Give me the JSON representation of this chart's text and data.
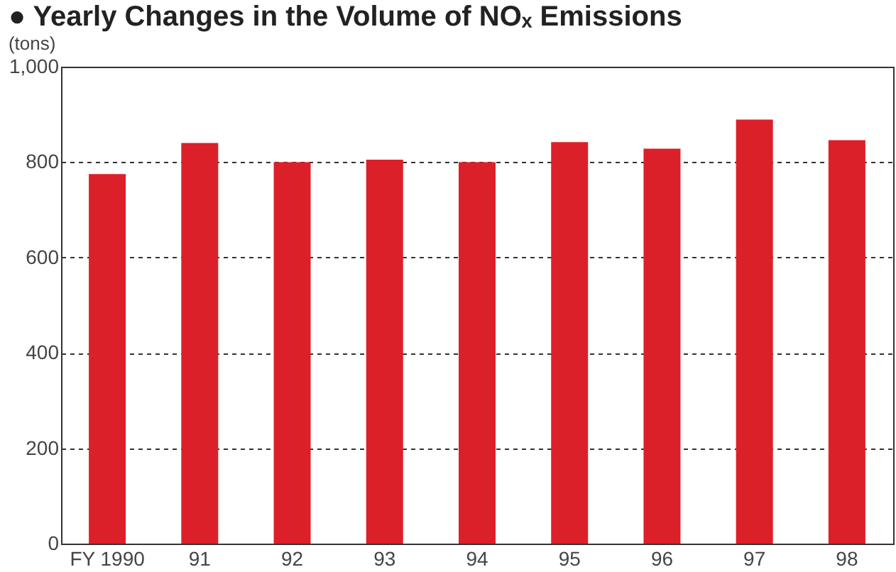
{
  "chart_data": {
    "type": "bar",
    "title": "● Yearly Changes in the Volume of NOₓ Emissions",
    "ylabel": "(tons)",
    "categories": [
      "FY 1990",
      "91",
      "92",
      "93",
      "94",
      "95",
      "96",
      "97",
      "98"
    ],
    "values": [
      775,
      840,
      800,
      805,
      800,
      842,
      828,
      889,
      846
    ],
    "color": "#dc2029",
    "ylim": [
      0,
      1000
    ],
    "yticks": [
      0,
      200,
      400,
      600,
      800,
      {
        "value": 1000,
        "label": "1,000"
      }
    ],
    "grid": "y"
  }
}
